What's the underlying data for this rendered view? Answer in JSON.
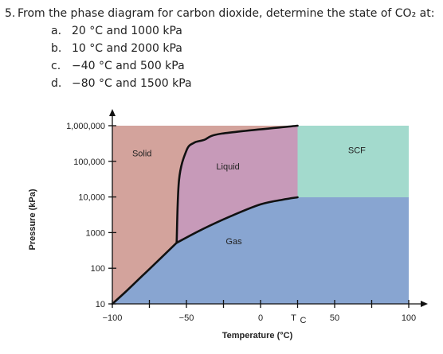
{
  "question": {
    "number": "5.",
    "prompt": "From the phase diagram for carbon dioxide, determine the state of CO₂ at:",
    "options": [
      {
        "letter": "a.",
        "text": "20 °C and 1000 kPa"
      },
      {
        "letter": "b.",
        "text": "10 °C and 2000 kPa"
      },
      {
        "letter": "c.",
        "text": "−40 °C and 500 kPa"
      },
      {
        "letter": "d.",
        "text": "−80 °C and 1500 kPa"
      }
    ]
  },
  "chart_data": {
    "type": "area",
    "xlabel": "Temperature (°C)",
    "ylabel": "Pressure (kPa)",
    "xlim": [
      -100,
      100
    ],
    "ylim": [
      10,
      1000000
    ],
    "yscale": "log",
    "x_ticks": [
      {
        "value": -100,
        "label": "−100"
      },
      {
        "value": -50,
        "label": "−50"
      },
      {
        "value": 0,
        "label": "0"
      },
      {
        "value": 50,
        "label": "50"
      },
      {
        "value": 100,
        "label": "100"
      }
    ],
    "x_minor_ticks": [
      -75,
      -25,
      25,
      75
    ],
    "critical_temperature_label": {
      "main": "T",
      "sub": "C",
      "value": 25
    },
    "y_ticks": [
      {
        "value": 10,
        "label": "10"
      },
      {
        "value": 100,
        "label": "100"
      },
      {
        "value": 1000,
        "label": "1000"
      },
      {
        "value": 10000,
        "label": "10,000"
      },
      {
        "value": 100000,
        "label": "100,000"
      },
      {
        "value": 1000000,
        "label": "1,000,000"
      }
    ],
    "regions": [
      {
        "name": "Solid",
        "color": "#d3a39c",
        "label_at": [
          -80,
          140000
        ]
      },
      {
        "name": "Liquid",
        "color": "#c79ab9",
        "label_at": [
          -22,
          59000
        ]
      },
      {
        "name": "SCF",
        "color": "#a3dacd",
        "label_at": [
          65,
          170000
        ]
      },
      {
        "name": "Gas",
        "color": "#88a5d1",
        "label_at": [
          -18,
          470
        ]
      }
    ],
    "curves": {
      "sublimation": [
        [
          -100,
          10
        ],
        [
          -90,
          24
        ],
        [
          -80,
          60
        ],
        [
          -70,
          150
        ],
        [
          -56.6,
          518
        ]
      ],
      "melting": [
        [
          -56.6,
          518
        ],
        [
          -55,
          30000
        ],
        [
          -50,
          200000
        ],
        [
          -45,
          330000
        ],
        [
          -38,
          400000
        ],
        [
          -26,
          600000
        ],
        [
          25,
          1000000
        ]
      ],
      "vaporization": [
        [
          -56.6,
          518
        ],
        [
          -40,
          1200
        ],
        [
          -20,
          2900
        ],
        [
          0,
          6200
        ],
        [
          15,
          8400
        ],
        [
          25,
          9800
        ]
      ]
    },
    "line_color": "#111111"
  }
}
